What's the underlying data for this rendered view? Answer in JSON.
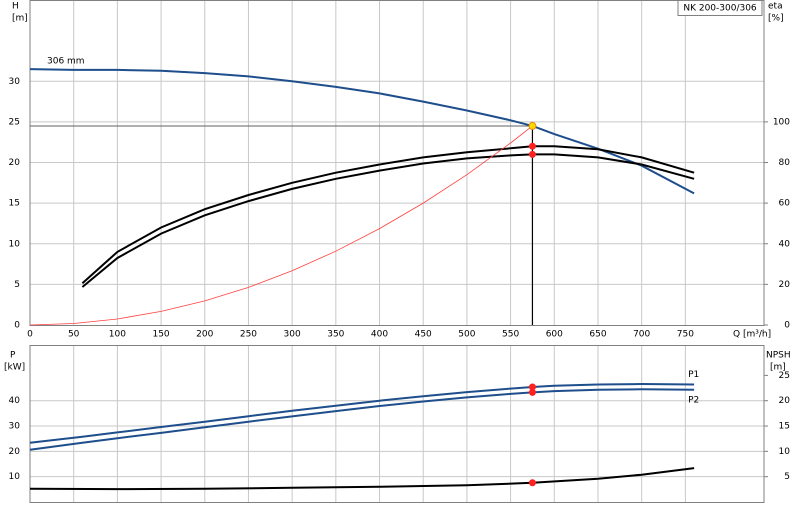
{
  "chart_data": [
    {
      "type": "line",
      "title": "NK 200-300/306",
      "xlabel": "Q [m³/h]",
      "ylabel": "H",
      "yunit": "[m]",
      "y2label": "eta",
      "y2unit": "[%]",
      "xlim": [
        0,
        840
      ],
      "xticks": [
        0,
        50,
        100,
        150,
        200,
        250,
        300,
        350,
        400,
        450,
        500,
        550,
        600,
        650,
        700,
        750
      ],
      "ylim": [
        0,
        40
      ],
      "yticks": [
        0,
        5,
        10,
        15,
        20,
        25,
        30
      ],
      "y2lim": [
        0,
        160
      ],
      "y2ticks": [
        0,
        20,
        40,
        60,
        80,
        100
      ],
      "grid": true,
      "series": [
        {
          "name": "306 mm",
          "color": "#1f4e8c",
          "x": [
            0,
            50,
            100,
            150,
            200,
            250,
            300,
            350,
            400,
            450,
            500,
            550,
            575,
            600,
            650,
            700,
            760
          ],
          "values": [
            31.5,
            31.4,
            31.4,
            31.3,
            31.0,
            30.6,
            30.0,
            29.3,
            28.5,
            27.5,
            26.4,
            25.2,
            24.5,
            23.5,
            21.7,
            19.6,
            16.2
          ]
        },
        {
          "color": "#000000",
          "axis": "y2",
          "x": [
            60,
            100,
            150,
            200,
            250,
            300,
            350,
            400,
            450,
            500,
            550,
            575,
            600,
            650,
            700,
            760
          ],
          "values": [
            20.6,
            36,
            48,
            57,
            64,
            70,
            75,
            79,
            82.5,
            85,
            87,
            88,
            88,
            86.5,
            82.5,
            75
          ]
        },
        {
          "color": "#000000",
          "axis": "y2",
          "x": [
            60,
            100,
            150,
            200,
            250,
            300,
            350,
            400,
            450,
            500,
            550,
            575,
            600,
            650,
            700,
            760
          ],
          "values": [
            18.7,
            33,
            45,
            54,
            61,
            67,
            72,
            76,
            79.5,
            82,
            83.5,
            84,
            84,
            82.5,
            79,
            72
          ]
        },
        {
          "color": "#ff4040",
          "width": 0.8,
          "x": [
            0,
            50,
            100,
            150,
            200,
            250,
            300,
            350,
            400,
            450,
            500,
            550,
            575
          ],
          "values": [
            0,
            0.19,
            0.74,
            1.67,
            2.96,
            4.63,
            6.67,
            9.08,
            11.86,
            15.0,
            18.5,
            22.4,
            24.5
          ]
        }
      ],
      "markers": [
        {
          "x": 575,
          "y": 24.5,
          "color": "#ffd700",
          "guides": true
        },
        {
          "x": 575,
          "y": 88,
          "color": "#ff2020",
          "axis": "y2"
        },
        {
          "x": 575,
          "y": 84,
          "color": "#ff2020",
          "axis": "y2"
        }
      ]
    },
    {
      "type": "line",
      "ylabel": "P",
      "yunit": "[kW]",
      "y2label": "NPSH",
      "y2unit": "[m]",
      "xlim": [
        0,
        840
      ],
      "ylim": [
        0,
        62
      ],
      "yticks": [
        10,
        20,
        30,
        40
      ],
      "y2lim": [
        0,
        31
      ],
      "y2ticks": [
        5,
        10,
        15,
        20,
        25
      ],
      "grid": true,
      "series": [
        {
          "name": "P1",
          "color": "#1f4e8c",
          "x": [
            0,
            60,
            100,
            150,
            200,
            250,
            300,
            350,
            400,
            450,
            500,
            550,
            575,
            600,
            650,
            700,
            760
          ],
          "values": [
            23.4,
            25.8,
            27.5,
            29.6,
            31.7,
            33.9,
            36,
            38,
            40,
            41.8,
            43.4,
            44.8,
            45.4,
            45.9,
            46.4,
            46.6,
            46.4
          ]
        },
        {
          "name": "P2",
          "color": "#1f4e8c",
          "x": [
            0,
            60,
            100,
            150,
            200,
            250,
            300,
            350,
            400,
            450,
            500,
            550,
            575,
            600,
            650,
            700,
            760
          ],
          "values": [
            20.6,
            23.4,
            25.2,
            27.3,
            29.5,
            31.7,
            33.8,
            35.9,
            37.9,
            39.7,
            41.3,
            42.7,
            43.3,
            43.8,
            44.3,
            44.5,
            44.3
          ]
        },
        {
          "color": "#000000",
          "axis": "y2",
          "x": [
            0,
            100,
            200,
            300,
            400,
            500,
            575,
            650,
            700,
            760
          ],
          "values": [
            2.6,
            2.55,
            2.6,
            2.8,
            3.0,
            3.3,
            3.8,
            4.6,
            5.4,
            6.7
          ]
        }
      ],
      "markers": [
        {
          "x": 575,
          "y": 45.4,
          "color": "#ff2020"
        },
        {
          "x": 575,
          "y": 43.3,
          "color": "#ff2020"
        },
        {
          "x": 575,
          "y": 3.8,
          "color": "#ff2020",
          "axis": "y2"
        }
      ]
    }
  ]
}
